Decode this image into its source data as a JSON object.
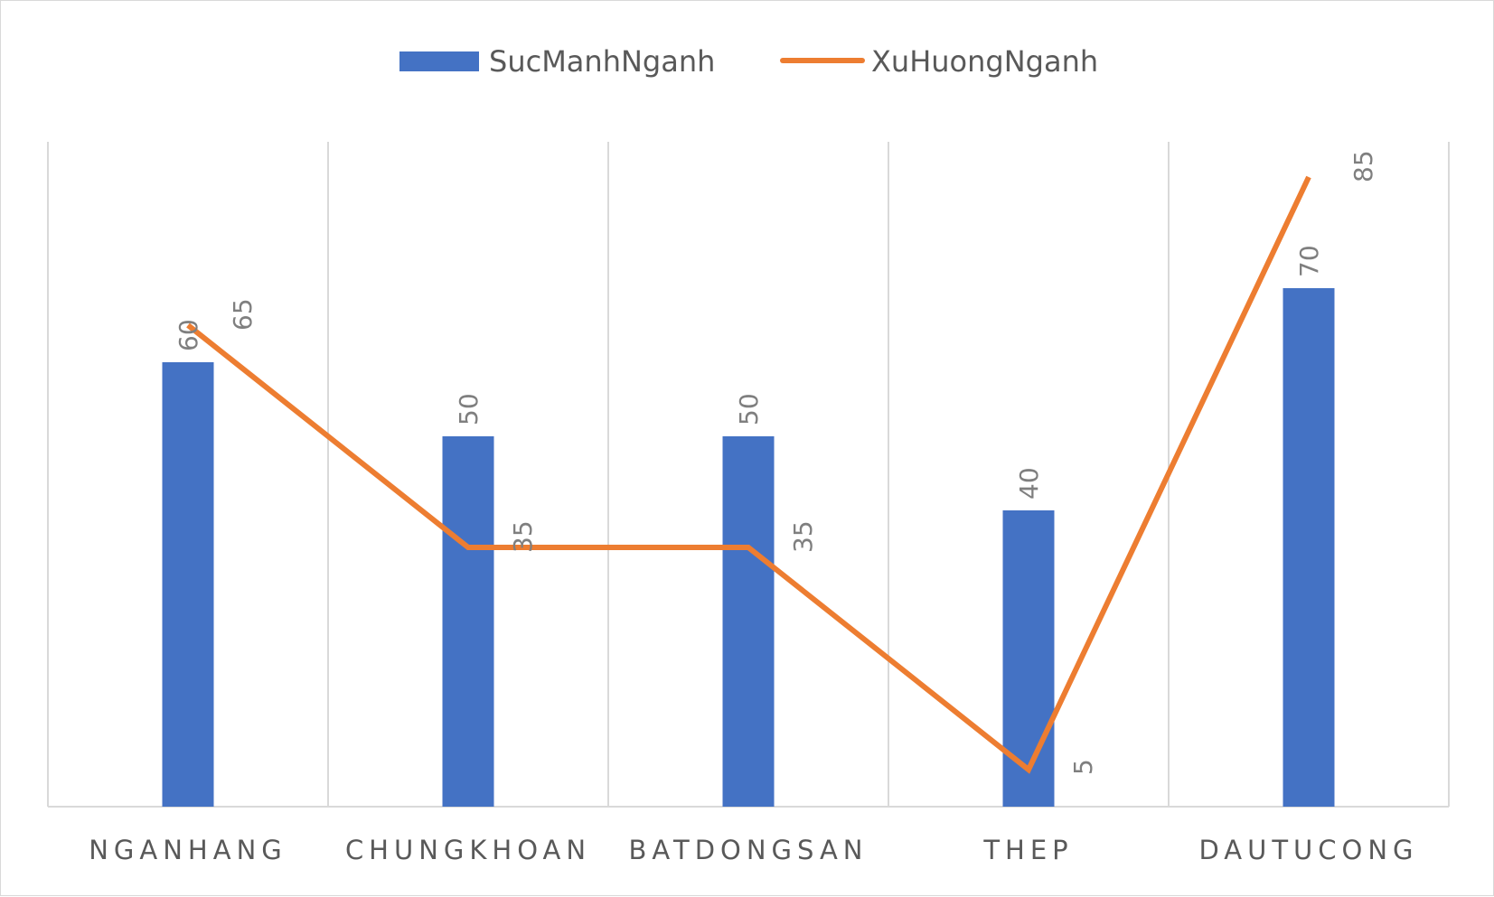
{
  "chart_data": {
    "type": "bar",
    "title": "",
    "xlabel": "",
    "ylabel": "",
    "categories": [
      "NGANHANG",
      "CHUNGKHOAN",
      "BATDONGSAN",
      "THEP",
      "DAUTUCONG"
    ],
    "series": [
      {
        "name": "SucManhNganh",
        "type": "bar",
        "color": "#4472c4",
        "values": [
          60,
          50,
          50,
          40,
          70
        ]
      },
      {
        "name": "XuHuongNganh",
        "type": "line",
        "color": "#ed7d31",
        "values": [
          65,
          35,
          35,
          5,
          85
        ]
      }
    ],
    "ylim": [
      0,
      90
    ],
    "grid": "vertical",
    "legend": "top-center",
    "data_labels": true
  }
}
